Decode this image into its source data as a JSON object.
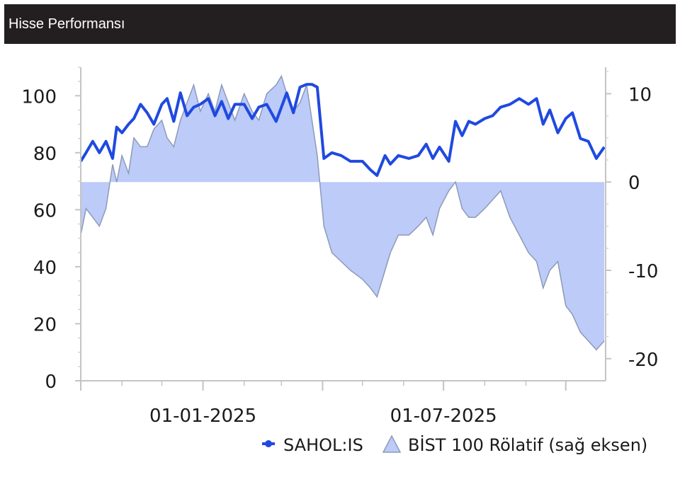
{
  "header": {
    "title": "Hisse Performansı"
  },
  "colors": {
    "header_bg": "#231f20",
    "price_line": "#1f49e0",
    "relative_fill": "#bccbf8",
    "relative_stroke": "#8d9ab8"
  },
  "chart_data": {
    "type": "line",
    "title": "",
    "xlabel": "",
    "ylabel": "",
    "x_tick_labels": [
      "01-01-2025",
      "01-07-2025"
    ],
    "y_left_ticks": [
      0,
      20,
      40,
      60,
      80,
      100
    ],
    "y_right_ticks": [
      -20,
      -10,
      0,
      10
    ],
    "ylim_left": [
      0,
      110
    ],
    "ylim_right": [
      -22.5,
      13
    ],
    "x_range": [
      "2024-10-01",
      "2025-10-31"
    ],
    "grid": false,
    "legend_position": "bottom-right",
    "series": [
      {
        "name": "SAHOL:IS",
        "style": "line",
        "axis": "left",
        "x": [
          "2024-10-01",
          "2024-10-05",
          "2024-10-10",
          "2024-10-15",
          "2024-10-20",
          "2024-10-25",
          "2024-10-28",
          "2024-11-01",
          "2024-11-06",
          "2024-11-10",
          "2024-11-15",
          "2024-11-20",
          "2024-11-25",
          "2024-12-01",
          "2024-12-05",
          "2024-12-10",
          "2024-12-15",
          "2024-12-20",
          "2024-12-25",
          "2024-12-30",
          "2025-01-05",
          "2025-01-10",
          "2025-01-15",
          "2025-01-20",
          "2025-01-25",
          "2025-02-01",
          "2025-02-07",
          "2025-02-12",
          "2025-02-18",
          "2025-02-25",
          "2025-03-01",
          "2025-03-05",
          "2025-03-10",
          "2025-03-15",
          "2025-03-20",
          "2025-03-24",
          "2025-03-28",
          "2025-04-02",
          "2025-04-08",
          "2025-04-15",
          "2025-04-22",
          "2025-05-01",
          "2025-05-07",
          "2025-05-12",
          "2025-05-18",
          "2025-05-22",
          "2025-05-28",
          "2025-06-05",
          "2025-06-12",
          "2025-06-18",
          "2025-06-23",
          "2025-06-28",
          "2025-07-05",
          "2025-07-10",
          "2025-07-15",
          "2025-07-20",
          "2025-07-25",
          "2025-08-01",
          "2025-08-07",
          "2025-08-13",
          "2025-08-20",
          "2025-08-27",
          "2025-09-03",
          "2025-09-09",
          "2025-09-14",
          "2025-09-19",
          "2025-09-25",
          "2025-10-01",
          "2025-10-06",
          "2025-10-12",
          "2025-10-18",
          "2025-10-24",
          "2025-10-30"
        ],
        "values": [
          77,
          80,
          84,
          80,
          84,
          78,
          89,
          87,
          90,
          92,
          97,
          94,
          90,
          97,
          99,
          91,
          101,
          93,
          96,
          97,
          99,
          93,
          98,
          92,
          97,
          97,
          92,
          96,
          97,
          91,
          96,
          101,
          94,
          103,
          104,
          104,
          103,
          78,
          80,
          79,
          77,
          77,
          74,
          72,
          79,
          76,
          79,
          78,
          79,
          83,
          78,
          82,
          77,
          91,
          86,
          91,
          90,
          92,
          93,
          96,
          97,
          99,
          97,
          99,
          90,
          95,
          87,
          92,
          94,
          85,
          84,
          78,
          82
        ]
      },
      {
        "name": "BİST 100 Rölatif (sağ eksen)",
        "style": "area",
        "axis": "right",
        "x": [
          "2024-10-01",
          "2024-10-05",
          "2024-10-10",
          "2024-10-15",
          "2024-10-20",
          "2024-10-25",
          "2024-10-28",
          "2024-11-01",
          "2024-11-06",
          "2024-11-10",
          "2024-11-15",
          "2024-11-20",
          "2024-11-25",
          "2024-12-01",
          "2024-12-05",
          "2024-12-10",
          "2024-12-15",
          "2024-12-20",
          "2024-12-25",
          "2024-12-30",
          "2025-01-05",
          "2025-01-10",
          "2025-01-15",
          "2025-01-20",
          "2025-01-25",
          "2025-02-01",
          "2025-02-07",
          "2025-02-12",
          "2025-02-18",
          "2025-02-25",
          "2025-03-01",
          "2025-03-05",
          "2025-03-10",
          "2025-03-15",
          "2025-03-20",
          "2025-03-24",
          "2025-03-28",
          "2025-04-02",
          "2025-04-08",
          "2025-04-15",
          "2025-04-22",
          "2025-05-01",
          "2025-05-07",
          "2025-05-12",
          "2025-05-18",
          "2025-05-22",
          "2025-05-28",
          "2025-06-05",
          "2025-06-12",
          "2025-06-18",
          "2025-06-23",
          "2025-06-28",
          "2025-07-05",
          "2025-07-10",
          "2025-07-15",
          "2025-07-20",
          "2025-07-25",
          "2025-08-01",
          "2025-08-07",
          "2025-08-13",
          "2025-08-20",
          "2025-08-27",
          "2025-09-03",
          "2025-09-09",
          "2025-09-14",
          "2025-09-19",
          "2025-09-25",
          "2025-10-01",
          "2025-10-06",
          "2025-10-12",
          "2025-10-18",
          "2025-10-24",
          "2025-10-30"
        ],
        "values": [
          -6,
          -3,
          -4,
          -5,
          -3,
          2,
          0,
          3,
          1,
          5,
          4,
          4,
          6,
          7,
          5,
          4,
          7,
          9,
          11,
          8,
          10,
          8,
          11,
          9,
          7,
          10,
          8,
          7,
          10,
          11,
          12,
          10,
          8,
          9,
          11,
          7,
          3,
          -5,
          -8,
          -9,
          -10,
          -11,
          -12,
          -13,
          -10,
          -8,
          -6,
          -6,
          -5,
          -4,
          -6,
          -3,
          -1,
          0,
          -3,
          -4,
          -4,
          -3,
          -2,
          -1,
          -4,
          -6,
          -8,
          -9,
          -12,
          -10,
          -9,
          -14,
          -15,
          -17,
          -18,
          -19,
          -18
        ]
      }
    ]
  }
}
